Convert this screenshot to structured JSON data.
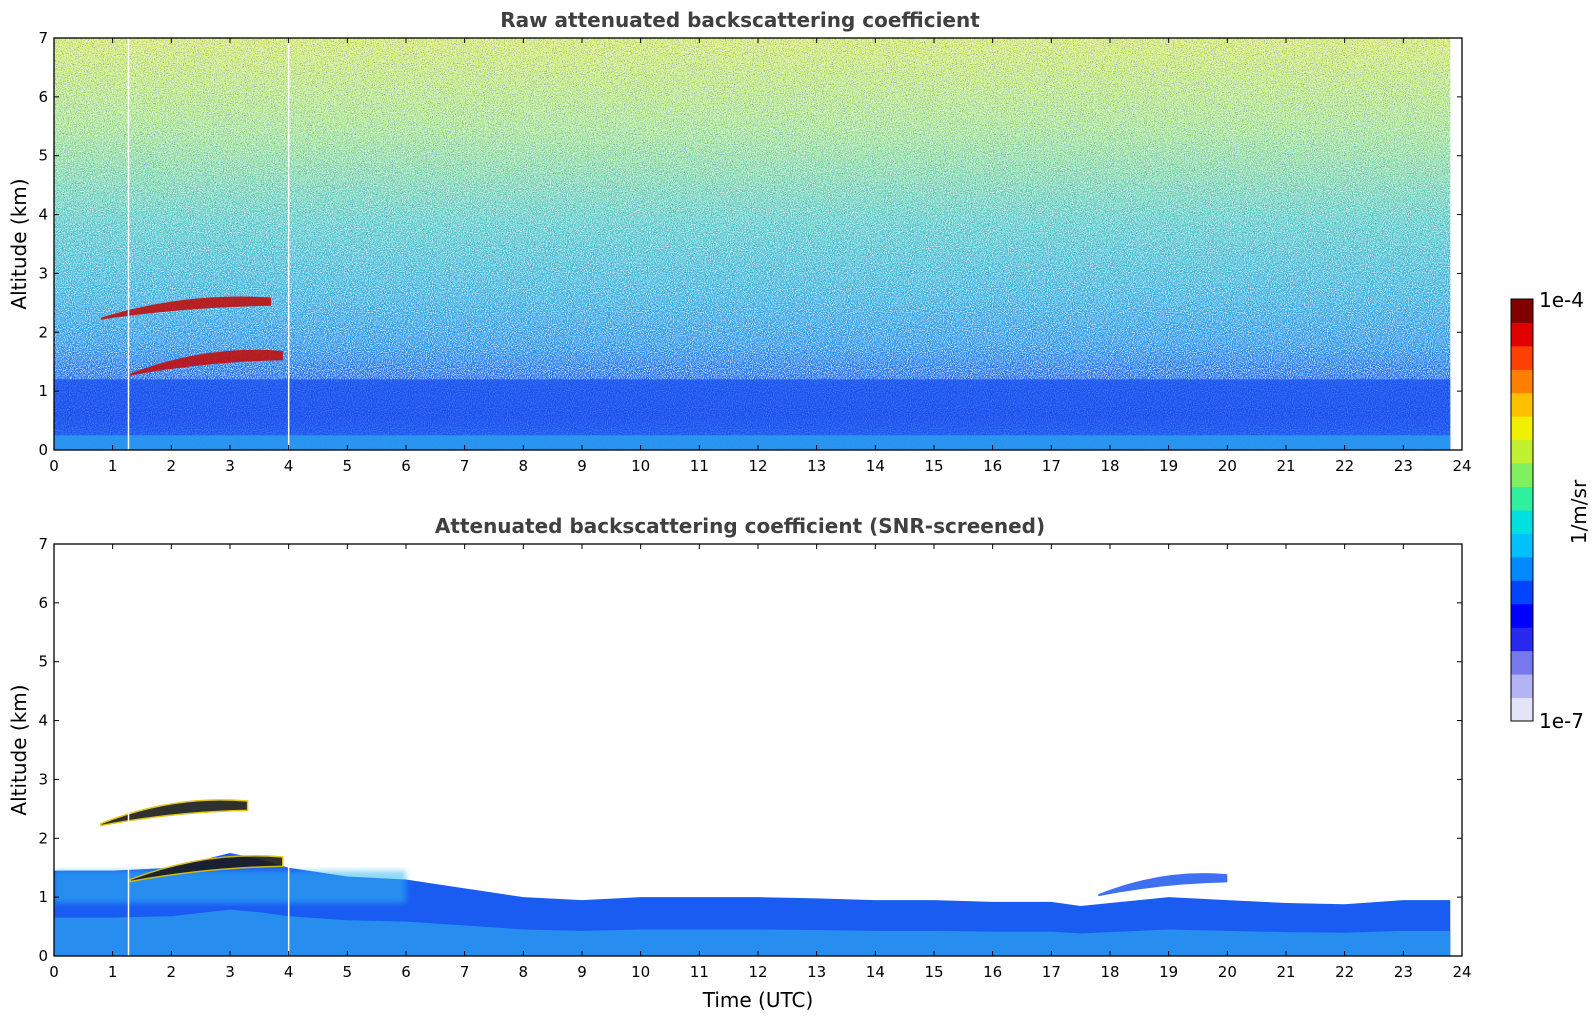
{
  "chart_data": [
    {
      "type": "heatmap",
      "title": "Raw attenuated backscattering coefficient",
      "xlabel": "",
      "ylabel": "Altitude (km)",
      "xlim": [
        0,
        24
      ],
      "ylim": [
        0,
        7
      ],
      "xticks": [
        0,
        1,
        2,
        3,
        4,
        5,
        6,
        7,
        8,
        9,
        10,
        11,
        12,
        13,
        14,
        15,
        16,
        17,
        18,
        19,
        20,
        21,
        22,
        23,
        24
      ],
      "yticks": [
        0,
        1,
        2,
        3,
        4,
        5,
        6,
        7
      ],
      "data_end_x": 23.8,
      "gap_lines_x": [
        1.27,
        4.0
      ],
      "background": "noisy signal increasing with altitude",
      "features": [
        {
          "kind": "cloud",
          "x": [
            0.8,
            3.7
          ],
          "y": [
            2.25,
            2.65
          ],
          "intensity": "high"
        },
        {
          "kind": "cloud",
          "x": [
            1.3,
            3.9
          ],
          "y": [
            1.3,
            1.75
          ],
          "intensity": "high"
        },
        {
          "kind": "boundary-layer",
          "x": [
            0,
            23.8
          ],
          "y": [
            0,
            1.2
          ],
          "intensity": "low"
        }
      ]
    },
    {
      "type": "heatmap",
      "title": "Attenuated backscattering coefficient (SNR-screened)",
      "xlabel": "Time (UTC)",
      "ylabel": "Altitude (km)",
      "xlim": [
        0,
        24
      ],
      "ylim": [
        0,
        7
      ],
      "xticks": [
        0,
        1,
        2,
        3,
        4,
        5,
        6,
        7,
        8,
        9,
        10,
        11,
        12,
        13,
        14,
        15,
        16,
        17,
        18,
        19,
        20,
        21,
        22,
        23,
        24
      ],
      "yticks": [
        0,
        1,
        2,
        3,
        4,
        5,
        6,
        7
      ],
      "data_end_x": 23.8,
      "gap_lines_x": [
        1.27,
        4.0
      ],
      "boundary_layer_top": [
        [
          0,
          1.45
        ],
        [
          1,
          1.45
        ],
        [
          2,
          1.5
        ],
        [
          3,
          1.75
        ],
        [
          3.5,
          1.65
        ],
        [
          4,
          1.5
        ],
        [
          5,
          1.35
        ],
        [
          6,
          1.3
        ],
        [
          7,
          1.15
        ],
        [
          8,
          1.0
        ],
        [
          9,
          0.95
        ],
        [
          10,
          1.0
        ],
        [
          11,
          1.0
        ],
        [
          12,
          1.0
        ],
        [
          13,
          0.98
        ],
        [
          14,
          0.95
        ],
        [
          15,
          0.95
        ],
        [
          16,
          0.92
        ],
        [
          17,
          0.92
        ],
        [
          17.5,
          0.85
        ],
        [
          18,
          0.9
        ],
        [
          19,
          1.0
        ],
        [
          20,
          0.95
        ],
        [
          21,
          0.9
        ],
        [
          22,
          0.88
        ],
        [
          23,
          0.95
        ],
        [
          23.8,
          0.95
        ]
      ],
      "features": [
        {
          "kind": "cloud",
          "x": [
            0.8,
            3.3
          ],
          "y": [
            2.25,
            2.7
          ],
          "intensity": "saturated"
        },
        {
          "kind": "cloud",
          "x": [
            1.3,
            3.9
          ],
          "y": [
            1.3,
            1.75
          ],
          "intensity": "saturated"
        },
        {
          "kind": "aerosol-layer",
          "x": [
            17.8,
            20.0
          ],
          "y": [
            1.05,
            1.45
          ],
          "intensity": "low"
        }
      ]
    }
  ],
  "colorbar": {
    "label": "1/m/sr",
    "max_label": "1e-4",
    "min_label": "1e-7",
    "scale": "log",
    "range": [
      1e-07,
      0.0001
    ],
    "colors": [
      "#e4e4f8",
      "#b4b4f4",
      "#7878ee",
      "#2828ee",
      "#0000ff",
      "#0044ff",
      "#0088ff",
      "#00c0ff",
      "#00e0e0",
      "#30f0a0",
      "#80f060",
      "#c0f030",
      "#f0f000",
      "#ffc000",
      "#ff8000",
      "#ff4000",
      "#e00000",
      "#800000"
    ]
  }
}
